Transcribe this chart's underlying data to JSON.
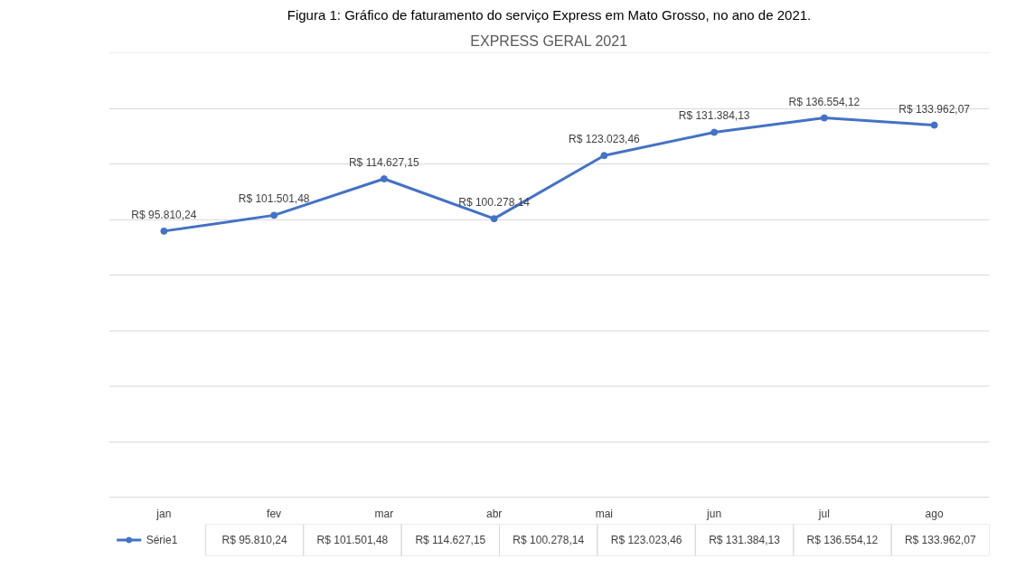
{
  "chart_data": {
    "type": "line",
    "title": "EXPRESS GERAL 2021",
    "annotations": [
      "Figura 1: Gráfico de faturamento do serviço Express em Mato Grosso, no ano de 2021."
    ],
    "categories": [
      "jan",
      "fev",
      "mar",
      "abr",
      "mai",
      "jun",
      "jul",
      "ago"
    ],
    "series": [
      {
        "name": "Série1",
        "color": "#4472c4",
        "values": [
          95810.24,
          101501.48,
          114627.15,
          100278.14,
          123023.46,
          131384.13,
          136554.12,
          133962.07
        ],
        "value_labels": [
          "R$ 95.810,24",
          "R$ 101.501,48",
          "R$ 114.627,15",
          "R$ 100.278,14",
          "R$ 123.023,46",
          "R$ 131.384,13",
          "R$ 136.554,12",
          "R$ 133.962,07"
        ]
      }
    ],
    "ylim": [
      0,
      160000
    ],
    "yticks": [
      {
        "value": 0,
        "label": null
      },
      {
        "value": 20000,
        "label": null
      },
      {
        "value": 40000,
        "label": null
      },
      {
        "value": 60000,
        "label": null
      },
      {
        "value": 80000,
        "label": null
      },
      {
        "value": 100000,
        "label": null
      },
      {
        "value": 120000,
        "label": null
      },
      {
        "value": 140000,
        "label": null
      },
      {
        "value": 160000,
        "label": null
      }
    ],
    "tick_labels": "x",
    "grid": "y",
    "marker": "circle",
    "line_style": "solid",
    "legend": "bottom left"
  }
}
